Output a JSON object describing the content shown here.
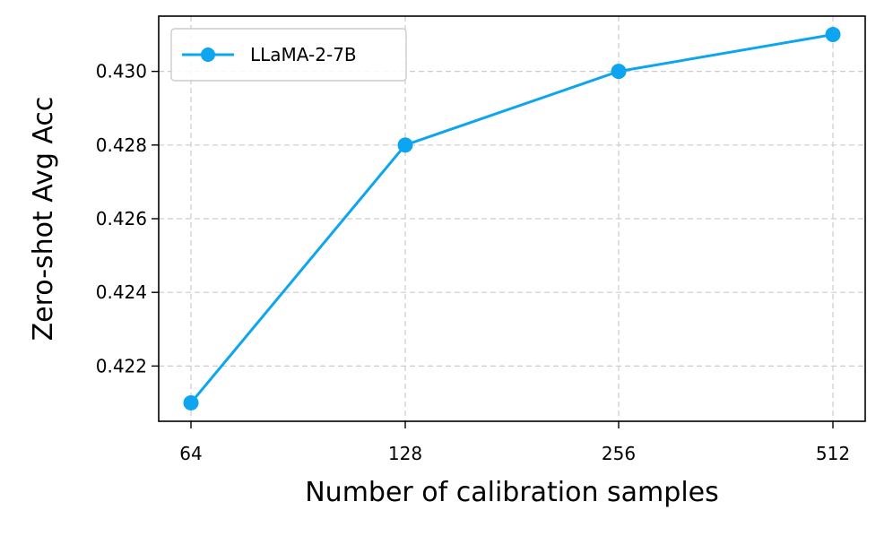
{
  "chart_data": {
    "type": "line",
    "xlabel": "Number of calibration samples",
    "ylabel": "Zero-shot Avg Acc",
    "x_ticks": [
      "64",
      "128",
      "256",
      "512"
    ],
    "y_ticks": [
      "0.422",
      "0.424",
      "0.426",
      "0.428",
      "0.430"
    ],
    "ylim": [
      0.4205,
      0.4315
    ],
    "grid": true,
    "legend_position": "top-left",
    "series": [
      {
        "name": "LLaMA-2-7B",
        "color": "#0ea5f0",
        "x": [
          64,
          128,
          256,
          512
        ],
        "y": [
          0.421,
          0.428,
          0.43,
          0.431
        ]
      }
    ]
  }
}
